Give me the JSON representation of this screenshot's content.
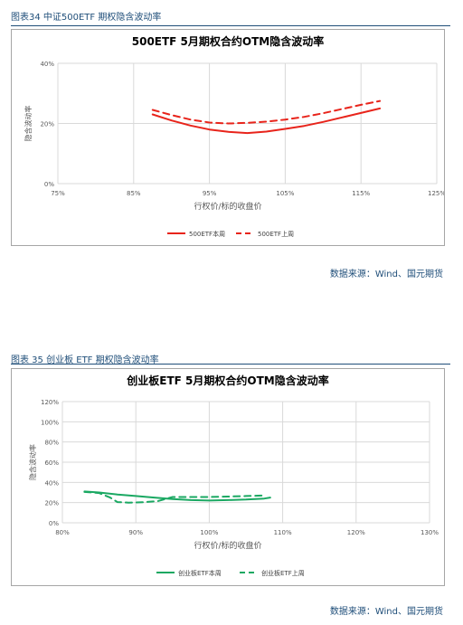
{
  "figures": [
    {
      "caption": "图表34 中证500ETF 期权隐含波动率",
      "source": "数据来源：Wind、国元期货"
    },
    {
      "caption": "图表 35 创业板 ETF 期权隐含波动率",
      "source": "数据来源：Wind、国元期货"
    }
  ],
  "colors": {
    "chart1_series": "#e8241b",
    "chart2_series": "#1aa862",
    "caption": "#1f4e79",
    "grid": "#d9d9d9"
  },
  "chart_data": [
    {
      "type": "line",
      "title": "500ETF 5月期权合约OTM隐含波动率",
      "xlabel": "行权价/标的收盘价",
      "ylabel": "隐含波动率",
      "xlim": [
        75,
        125
      ],
      "ylim": [
        0,
        40
      ],
      "x_ticks": [
        "75%",
        "85%",
        "95%",
        "105%",
        "115%",
        "125%"
      ],
      "x_tick_values": [
        75,
        85,
        95,
        105,
        115,
        125
      ],
      "y_ticks": [
        "0%",
        "20%",
        "40%"
      ],
      "y_tick_values": [
        0,
        20,
        40
      ],
      "grid": "vertical and horizontal",
      "legend_position": "bottom",
      "series": [
        {
          "name": "500ETF本周",
          "dash": "solid",
          "x": [
            87.5,
            90,
            92.5,
            95,
            97.5,
            100,
            102.5,
            105,
            107.5,
            110,
            112.5,
            115,
            117.5
          ],
          "y": [
            23.0,
            21.0,
            19.3,
            18.0,
            17.2,
            16.8,
            17.3,
            18.2,
            19.2,
            20.5,
            22.0,
            23.5,
            25.0
          ]
        },
        {
          "name": "500ETF上周",
          "dash": "dashed",
          "x": [
            87.5,
            90,
            92.5,
            95,
            97.5,
            100,
            102.5,
            105,
            107.5,
            110,
            112.5,
            115,
            117.5
          ],
          "y": [
            24.5,
            22.8,
            21.3,
            20.3,
            20.0,
            20.2,
            20.6,
            21.3,
            22.2,
            23.4,
            24.8,
            26.2,
            27.5
          ]
        }
      ]
    },
    {
      "type": "line",
      "title": "创业板ETF 5月期权合约OTM隐含波动率",
      "xlabel": "行权价/标的收盘价",
      "ylabel": "隐含波动率",
      "xlim": [
        80,
        130
      ],
      "ylim": [
        0,
        120
      ],
      "x_ticks": [
        "80%",
        "90%",
        "100%",
        "110%",
        "120%",
        "130%"
      ],
      "x_tick_values": [
        80,
        90,
        100,
        110,
        120,
        130
      ],
      "y_ticks": [
        "0%",
        "20%",
        "40%",
        "60%",
        "80%",
        "100%",
        "120%"
      ],
      "y_tick_values": [
        0,
        20,
        40,
        60,
        80,
        100,
        120
      ],
      "grid": "vertical and horizontal",
      "legend_position": "bottom",
      "series": [
        {
          "name": "创业板ETF本周",
          "dash": "solid",
          "x": [
            83,
            85,
            87.5,
            90,
            92.5,
            95,
            97.5,
            100,
            102.5,
            105,
            107.5,
            108.3
          ],
          "y": [
            31,
            30,
            28,
            26.5,
            25,
            23.5,
            22.5,
            22,
            22.5,
            23,
            24,
            25
          ]
        },
        {
          "name": "创业板ETF上周",
          "dash": "dashed",
          "x": [
            83,
            85,
            86.5,
            87.5,
            89,
            91,
            93,
            95,
            97.5,
            100,
            102.5,
            105,
            107.5
          ],
          "y": [
            30.5,
            29.5,
            25,
            20.5,
            20,
            20.3,
            21.5,
            25.5,
            25.5,
            25.5,
            26,
            26.5,
            27
          ]
        }
      ]
    }
  ]
}
